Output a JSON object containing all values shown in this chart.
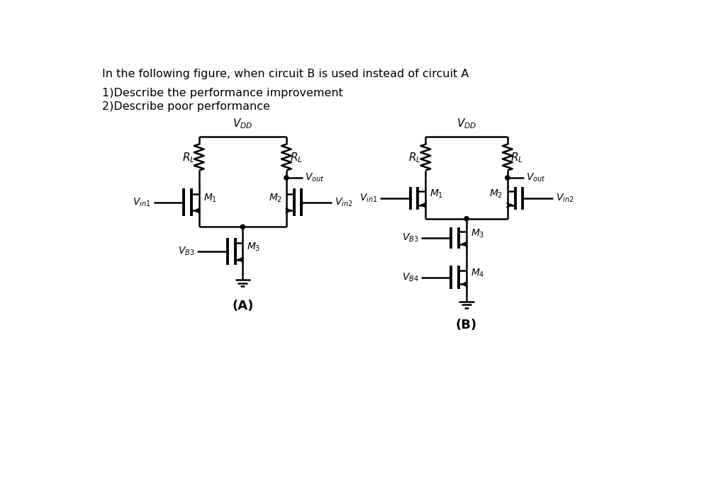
{
  "bg_color": "#ffffff",
  "line_color": "#000000",
  "text_color": "#000000",
  "title_line1": "In the following figure, when circuit B is used instead of circuit A",
  "question_line1": "1)Describe the performance improvement",
  "question_line2": "2)Describe poor performance",
  "label_A": "(A)",
  "label_B": "(B)",
  "figsize": [
    10.24,
    7.06
  ],
  "dpi": 100
}
